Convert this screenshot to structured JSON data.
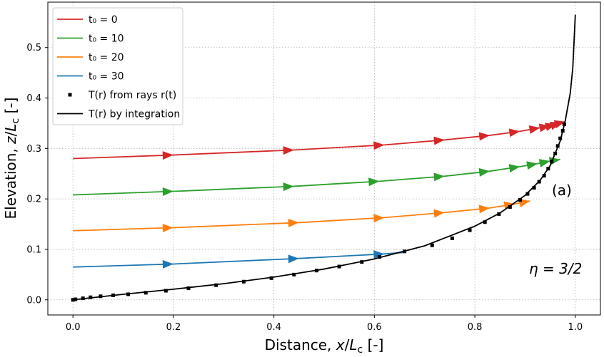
{
  "chart_data": {
    "type": "line",
    "xlabel": "Distance, x/L_c  [-]",
    "ylabel": "Elevation, z/L_c  [-]",
    "xlim": [
      -0.05,
      1.05
    ],
    "ylim": [
      -0.03,
      0.59
    ],
    "xticks": [
      0.0,
      0.2,
      0.4,
      0.6,
      0.8,
      1.0
    ],
    "yticks": [
      0.0,
      0.1,
      0.2,
      0.3,
      0.4,
      0.5
    ],
    "xtick_labels": [
      "0.0",
      "0.2",
      "0.4",
      "0.6",
      "0.8",
      "1.0"
    ],
    "ytick_labels": [
      "0.0",
      "0.1",
      "0.2",
      "0.3",
      "0.4",
      "0.5"
    ],
    "grid": true,
    "legend_position": "top-left",
    "annotations": [
      "(a)",
      "η = 3/2"
    ],
    "series": [
      {
        "name": "t0 = 0",
        "legend_label": "t₀ = 0",
        "color": "#d62728",
        "x": [
          0.0,
          0.2,
          0.44,
          0.62,
          0.74,
          0.83,
          0.89,
          0.93,
          0.95,
          0.962,
          0.972,
          0.98
        ],
        "y": [
          0.28,
          0.287,
          0.297,
          0.307,
          0.317,
          0.326,
          0.334,
          0.341,
          0.345,
          0.348,
          0.351,
          0.353
        ],
        "arrow_at_index": [
          1,
          2,
          3,
          4,
          5,
          6,
          7,
          8,
          9,
          10,
          11
        ]
      },
      {
        "name": "t0 = 10",
        "legend_label": "t₀ = 10",
        "color": "#2ca02c",
        "x": [
          0.0,
          0.2,
          0.44,
          0.61,
          0.74,
          0.83,
          0.89,
          0.925,
          0.95,
          0.97
        ],
        "y": [
          0.208,
          0.215,
          0.225,
          0.235,
          0.245,
          0.255,
          0.264,
          0.27,
          0.275,
          0.278
        ],
        "arrow_at_index": [
          1,
          2,
          3,
          4,
          5,
          6,
          7,
          8,
          9
        ]
      },
      {
        "name": "t0 = 20",
        "legend_label": "t₀ = 20",
        "color": "#ff7f0e",
        "x": [
          0.0,
          0.2,
          0.45,
          0.62,
          0.74,
          0.83,
          0.88,
          0.91
        ],
        "y": [
          0.137,
          0.143,
          0.153,
          0.163,
          0.173,
          0.182,
          0.19,
          0.196
        ],
        "arrow_at_index": [
          1,
          2,
          3,
          4,
          5,
          6,
          7
        ]
      },
      {
        "name": "t0 = 30",
        "legend_label": "t₀ = 30",
        "color": "#1f77b4",
        "x": [
          0.0,
          0.2,
          0.45,
          0.62,
          0.66
        ],
        "y": [
          0.065,
          0.071,
          0.082,
          0.091,
          0.094
        ],
        "arrow_at_index": [
          1,
          2,
          3
        ]
      },
      {
        "name": "T(r) from rays r(t)",
        "legend_label": "T(r) from rays r(t)",
        "color": "#000000",
        "marker": "square",
        "x": [
          0.0,
          0.005,
          0.02,
          0.035,
          0.055,
          0.08,
          0.11,
          0.145,
          0.185,
          0.23,
          0.285,
          0.34,
          0.395,
          0.44,
          0.485,
          0.53,
          0.575,
          0.61,
          0.66,
          0.715,
          0.755,
          0.79,
          0.82,
          0.848,
          0.87,
          0.89,
          0.905,
          0.918,
          0.928,
          0.938,
          0.946,
          0.953,
          0.96,
          0.965,
          0.97,
          0.975,
          0.978
        ],
        "y": [
          0.0,
          0.001,
          0.003,
          0.005,
          0.007,
          0.009,
          0.011,
          0.014,
          0.018,
          0.023,
          0.029,
          0.036,
          0.043,
          0.05,
          0.058,
          0.066,
          0.075,
          0.085,
          0.096,
          0.108,
          0.122,
          0.138,
          0.154,
          0.17,
          0.184,
          0.198,
          0.21,
          0.222,
          0.234,
          0.246,
          0.26,
          0.274,
          0.29,
          0.305,
          0.32,
          0.335,
          0.348
        ]
      },
      {
        "name": "T(r) by integration",
        "legend_label": "T(r) by integration",
        "color": "#000000",
        "x": [
          0.0,
          0.1,
          0.2,
          0.3,
          0.4,
          0.5,
          0.6,
          0.7,
          0.8,
          0.85,
          0.9,
          0.93,
          0.95,
          0.97,
          0.98,
          0.99,
          0.995,
          1.0
        ],
        "y": [
          0.0,
          0.011,
          0.021,
          0.032,
          0.045,
          0.061,
          0.081,
          0.107,
          0.146,
          0.172,
          0.207,
          0.237,
          0.266,
          0.315,
          0.355,
          0.41,
          0.46,
          0.565
        ]
      }
    ]
  }
}
